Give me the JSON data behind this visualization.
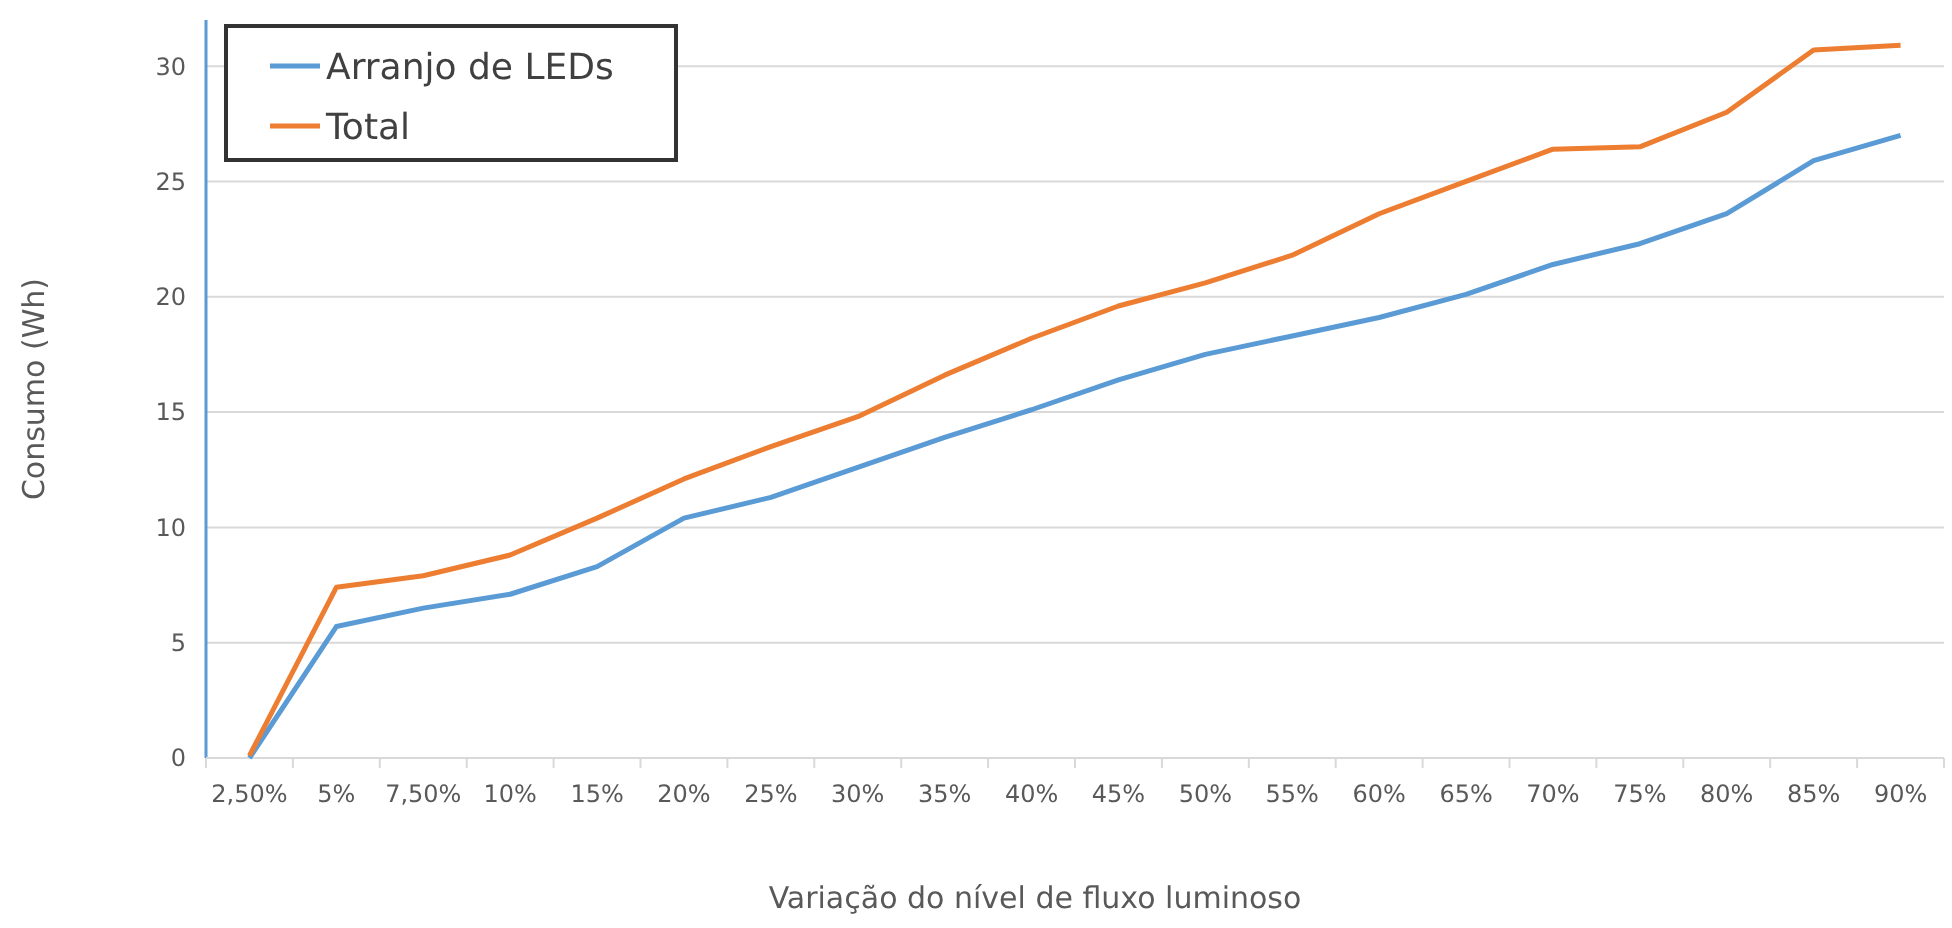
{
  "chart_data": {
    "type": "line",
    "xlabel": "Variação do nível de fluxo luminoso",
    "ylabel": "Consumo (Wh)",
    "categories": [
      "2,50%",
      "5%",
      "7,50%",
      "10%",
      "15%",
      "20%",
      "25%",
      "30%",
      "35%",
      "40%",
      "45%",
      "50%",
      "55%",
      "60%",
      "65%",
      "70%",
      "75%",
      "80%",
      "85%",
      "90%"
    ],
    "series": [
      {
        "name": "Arranjo de LEDs",
        "color": "#5b9bd5",
        "values": [
          0,
          5.7,
          6.5,
          7.1,
          8.3,
          10.4,
          11.3,
          12.6,
          13.9,
          15.1,
          16.4,
          17.5,
          18.3,
          19.1,
          20.1,
          21.4,
          22.3,
          23.6,
          25.9,
          27.0
        ]
      },
      {
        "name": "Total",
        "color": "#ed7d31",
        "values": [
          0.1,
          7.4,
          7.9,
          8.8,
          10.4,
          12.1,
          13.5,
          14.8,
          16.6,
          18.2,
          19.6,
          20.6,
          21.8,
          23.6,
          25.0,
          26.4,
          26.5,
          28.0,
          30.7,
          30.9
        ]
      }
    ],
    "ylim": [
      0,
      32
    ],
    "yticks": [
      0,
      5,
      10,
      15,
      20,
      25,
      30
    ],
    "grid": "y",
    "legend": "top left",
    "line_style": "solid",
    "marker": "none"
  }
}
